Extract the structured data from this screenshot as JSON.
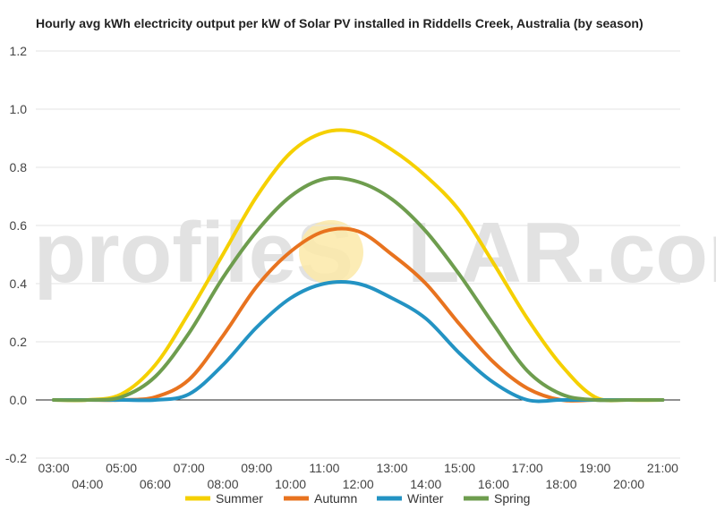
{
  "watermark": {
    "part1": "profileS",
    "part2": "LAR.com"
  },
  "chart_data": {
    "type": "line",
    "title": "Hourly avg kWh electricity output per kW of Solar PV installed in Riddells Creek, Australia (by season)",
    "xlabel": "",
    "ylabel": "",
    "ylim": [
      -0.2,
      1.2
    ],
    "yticks": [
      "-0.2",
      "0.0",
      "0.2",
      "0.4",
      "0.6",
      "0.8",
      "1.0",
      "1.2"
    ],
    "x": [
      "03:00",
      "04:00",
      "05:00",
      "06:00",
      "07:00",
      "08:00",
      "09:00",
      "10:00",
      "11:00",
      "12:00",
      "13:00",
      "14:00",
      "15:00",
      "16:00",
      "17:00",
      "18:00",
      "19:00",
      "20:00",
      "21:00"
    ],
    "grid": true,
    "legend": "bottom",
    "series": [
      {
        "name": "Summer",
        "color": "#F5D000",
        "values": [
          0,
          0,
          0.02,
          0.12,
          0.3,
          0.5,
          0.7,
          0.85,
          0.92,
          0.92,
          0.86,
          0.77,
          0.65,
          0.47,
          0.28,
          0.12,
          0.01,
          0,
          0
        ]
      },
      {
        "name": "Autumn",
        "color": "#E8731F",
        "values": [
          0,
          0,
          0,
          0.01,
          0.07,
          0.22,
          0.39,
          0.51,
          0.58,
          0.58,
          0.5,
          0.4,
          0.26,
          0.13,
          0.04,
          0,
          0,
          0,
          0
        ]
      },
      {
        "name": "Winter",
        "color": "#2393C3",
        "values": [
          0,
          0,
          0,
          0,
          0.02,
          0.12,
          0.25,
          0.35,
          0.4,
          0.4,
          0.35,
          0.28,
          0.16,
          0.06,
          0,
          0,
          0,
          0,
          0
        ]
      },
      {
        "name": "Spring",
        "color": "#6E9D4E",
        "values": [
          0,
          0,
          0.01,
          0.08,
          0.23,
          0.42,
          0.58,
          0.7,
          0.76,
          0.75,
          0.69,
          0.58,
          0.43,
          0.26,
          0.1,
          0.02,
          0,
          0,
          0
        ]
      }
    ]
  }
}
